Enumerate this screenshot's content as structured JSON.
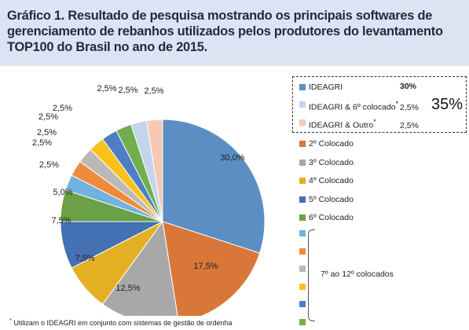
{
  "title": "Gráfico 1. Resultado de pesquisa mostrando os principais softwares de gerenciamento de rebanhos utilizados pelos produtores do levantamento TOP100 do Brasil no ano de 2015.",
  "chart_data": {
    "type": "pie",
    "slices": [
      {
        "label": "IDEAGRI",
        "value": 30.0,
        "value_label": "30,0%",
        "color": "#5b8fc3"
      },
      {
        "label": "2º Colocado",
        "value": 17.5,
        "value_label": "17,5%",
        "color": "#d9773a"
      },
      {
        "label": "3º Colocado",
        "value": 12.5,
        "value_label": "12,5%",
        "color": "#a8a8a8"
      },
      {
        "label": "4º Colocado",
        "value": 7.5,
        "value_label": "7,5%",
        "color": "#e3b023"
      },
      {
        "label": "5º Colocado",
        "value": 7.5,
        "value_label": "7,5%",
        "color": "#4470b4"
      },
      {
        "label": "6º Colocado",
        "value": 5.0,
        "value_label": "5,0%",
        "color": "#6aa046"
      },
      {
        "label": "7º",
        "value": 2.5,
        "value_label": "2,5%",
        "color": "#71b2df"
      },
      {
        "label": "8º",
        "value": 2.5,
        "value_label": "2,5%",
        "color": "#f08a3b"
      },
      {
        "label": "9º",
        "value": 2.5,
        "value_label": "2,5%",
        "color": "#b9b9b9"
      },
      {
        "label": "10º",
        "value": 2.5,
        "value_label": "2,5%",
        "color": "#fcc21c"
      },
      {
        "label": "11º",
        "value": 2.5,
        "value_label": "2,5%",
        "color": "#4f7ec4"
      },
      {
        "label": "12º",
        "value": 2.5,
        "value_label": "2,5%",
        "color": "#72ae4d"
      },
      {
        "label": "IDEAGRI & 6º colocado",
        "value": 2.5,
        "value_label": "2,5%",
        "color": "#c2d5ec"
      },
      {
        "label": "IDEAGRI & Outro",
        "value": 2.5,
        "value_label": "2,5%",
        "color": "#f6c9b5"
      }
    ],
    "legend": {
      "group": [
        {
          "label": "IDEAGRI",
          "value": "30%",
          "color": "#5b8fc3"
        },
        {
          "label": "IDEAGRI & 6º colocado",
          "mark": "*",
          "value": "2,5%",
          "color": "#c2d5ec"
        },
        {
          "label": "IDEAGRI & Outro",
          "mark": "*",
          "value": "2,5%",
          "color": "#f6c9b5"
        }
      ],
      "group_total": "35%",
      "items": [
        {
          "label": "2º Colocado",
          "color": "#d9773a"
        },
        {
          "label": "3º Colocado",
          "color": "#a8a8a8"
        },
        {
          "label": "4º Colocado",
          "color": "#e3b023"
        },
        {
          "label": "5º Colocado",
          "color": "#4470b4"
        },
        {
          "label": "6º Colocado",
          "color": "#6aa046"
        }
      ],
      "rest_colors": [
        "#71b2df",
        "#f08a3b",
        "#b9b9b9",
        "#fcc21c",
        "#4f7ec4",
        "#72ae4d"
      ],
      "rest_label": "7º ao 12º colocados"
    }
  },
  "footnote": {
    "mark": "*",
    "text": "Utilizam o IDEAGRI em conjunto com sistemas de gestão de ordenha"
  }
}
